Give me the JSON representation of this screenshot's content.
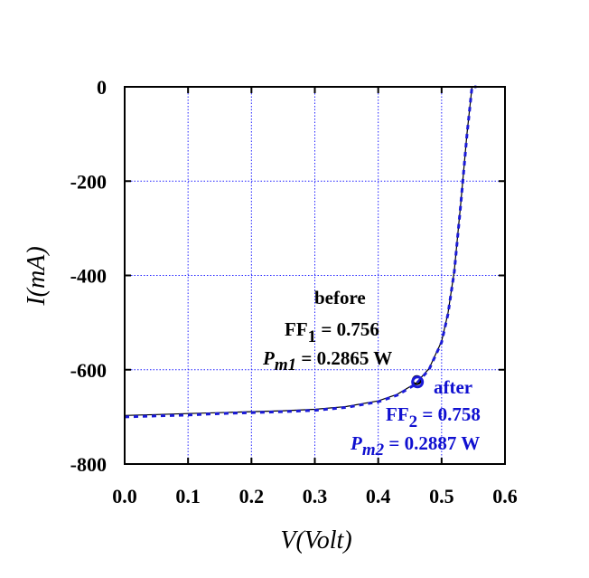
{
  "colors": {
    "before": "#000000",
    "after": "#1a1ad8",
    "grid": "#2222ff"
  },
  "chart_data": {
    "type": "line",
    "xlabel": "V(Volt)",
    "ylabel": "I(mA)",
    "xlim": [
      0.0,
      0.6
    ],
    "ylim": [
      -800,
      0
    ],
    "x_ticks": [
      0.0,
      0.1,
      0.2,
      0.3,
      0.4,
      0.5,
      0.6
    ],
    "x_tick_labels": [
      "0.0",
      "0.1",
      "0.2",
      "0.3",
      "0.4",
      "0.5",
      "0.6"
    ],
    "y_ticks": [
      0,
      -200,
      -400,
      -600,
      -800
    ],
    "y_tick_labels": [
      "0",
      "-200",
      "-400",
      "-600",
      "-800"
    ],
    "grid": true,
    "series": [
      {
        "name": "before",
        "style": "solid",
        "x": [
          0.0,
          0.05,
          0.1,
          0.15,
          0.2,
          0.25,
          0.3,
          0.35,
          0.4,
          0.43,
          0.46,
          0.48,
          0.5,
          0.51,
          0.52,
          0.53,
          0.54,
          0.548,
          0.555
        ],
        "y": [
          -697,
          -695,
          -693,
          -691,
          -689,
          -687,
          -684,
          -678,
          -666,
          -652,
          -628,
          -598,
          -540,
          -480,
          -390,
          -250,
          -100,
          0,
          0
        ]
      },
      {
        "name": "after",
        "style": "dashed",
        "x": [
          0.0,
          0.05,
          0.1,
          0.15,
          0.2,
          0.25,
          0.3,
          0.35,
          0.4,
          0.43,
          0.46,
          0.48,
          0.5,
          0.51,
          0.52,
          0.53,
          0.54,
          0.548,
          0.555
        ],
        "y": [
          -700,
          -698,
          -696,
          -693,
          -691,
          -689,
          -686,
          -680,
          -668,
          -654,
          -630,
          -600,
          -542,
          -482,
          -392,
          -252,
          -102,
          0,
          0
        ]
      }
    ],
    "markers": [
      {
        "series": "before",
        "x": 0.461,
        "y": -622
      },
      {
        "series": "after",
        "x": 0.462,
        "y": -626
      }
    ],
    "annotations": {
      "before": {
        "title": "before",
        "ff_prefix": "FF",
        "ff_sub": "1",
        "ff_value": " = 0.756",
        "pm_prefix": "P",
        "pm_sub": "m1",
        "pm_value": " = 0.2865 W"
      },
      "after": {
        "title": "after",
        "ff_prefix": "FF",
        "ff_sub": "2",
        "ff_value": " = 0.758",
        "pm_prefix": "P",
        "pm_sub": "m2",
        "pm_value": " = 0.2887 W"
      }
    }
  }
}
